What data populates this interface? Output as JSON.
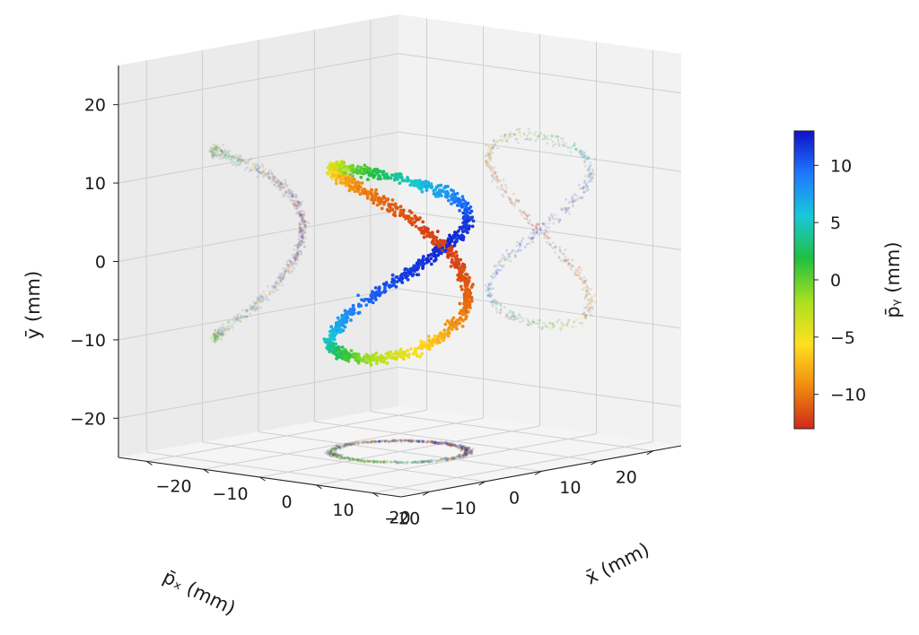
{
  "chart_data": {
    "type": "scatter",
    "subtype": "3d-scatter-with-projections",
    "x_axis": {
      "label": "x̄ (mm)",
      "ticks": [
        "−20",
        "−10",
        "0",
        "10",
        "20"
      ],
      "range": [
        -25,
        25
      ]
    },
    "y_axis": {
      "label": "ȳ (mm)",
      "ticks": [
        "−20",
        "−10",
        "0",
        "10",
        "20"
      ],
      "range": [
        -25,
        25
      ]
    },
    "z_axis": {
      "label": "p̄ₓ (mm)",
      "ticks": [
        "20",
        "10",
        "0",
        "−10",
        "−20"
      ],
      "range": [
        -25,
        25
      ]
    },
    "colorbar": {
      "label": "p̄ᵧ (mm)",
      "ticks": [
        "10",
        "5",
        "0",
        "−5",
        "−10"
      ],
      "range": [
        -13,
        13
      ],
      "colormap": "jet",
      "colors": [
        "#1010c8",
        "#1e78ff",
        "#18c8d8",
        "#20c040",
        "#a8e020",
        "#ffe020",
        "#f08c10",
        "#d02818"
      ]
    },
    "series": [
      {
        "shape": "figure-eight space curve",
        "x_amplitude": 10,
        "y_amplitude": 12,
        "px_amplitude": 8,
        "py_amplitude": 12,
        "projections": [
          "x-y plane (figure eight)",
          "px-y plane (arc)",
          "x-px plane (ellipse)"
        ]
      }
    ],
    "grid": true
  }
}
